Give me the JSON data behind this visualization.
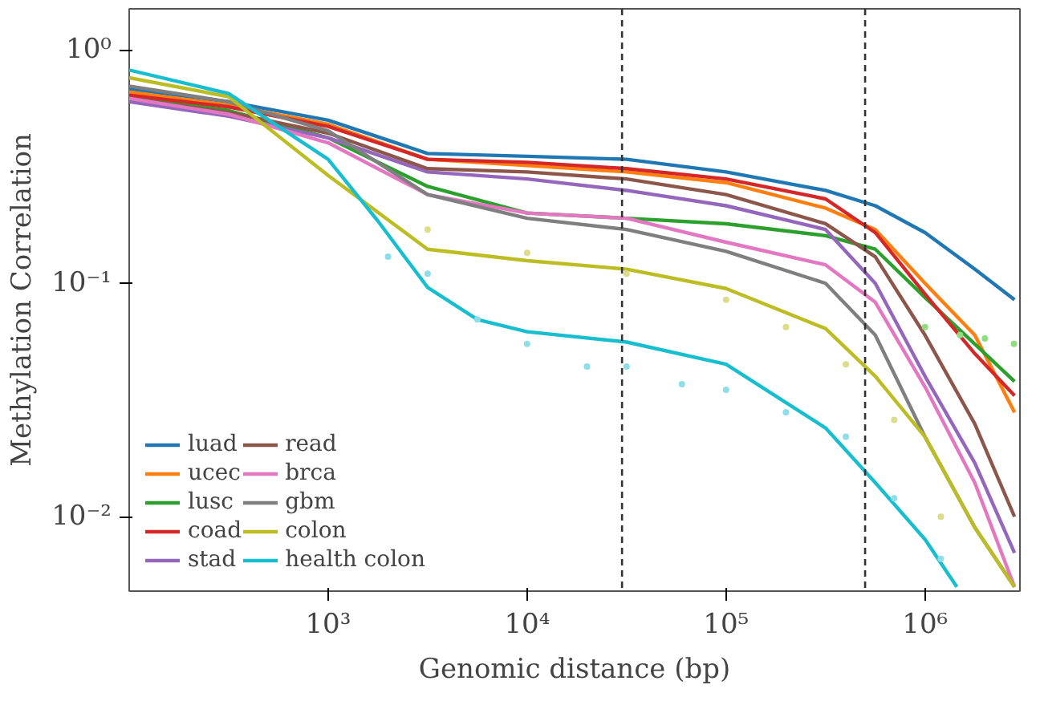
{
  "chart_data": {
    "type": "line",
    "xlabel": "Genomic distance (bp)",
    "ylabel": "Methylation Correlation",
    "log": "xy",
    "xlim": [
      100,
      3000000
    ],
    "ylim": [
      0.0048,
      1.5
    ],
    "xticks": [
      {
        "value": 1000,
        "label": "10³"
      },
      {
        "value": 10000,
        "label": "10⁴"
      },
      {
        "value": 100000,
        "label": "10⁵"
      },
      {
        "value": 1000000,
        "label": "10⁶"
      }
    ],
    "yticks": [
      {
        "value": 0.01,
        "label": "10⁻²"
      },
      {
        "value": 0.1,
        "label": "10⁻¹"
      },
      {
        "value": 1,
        "label": "10⁰"
      }
    ],
    "x": [
      100,
      316,
      1000,
      3162,
      10000,
      31623,
      100000,
      316228,
      562341,
      1000000,
      1778279,
      2818383
    ],
    "grid": false,
    "legend": "bottom left",
    "line_style": "solid",
    "ref_lines": [
      {
        "axis": "x",
        "value": 30000,
        "color": "#333333",
        "line_style": "dashed"
      },
      {
        "axis": "x",
        "value": 500000,
        "color": "#333333",
        "line_style": "dashed"
      }
    ],
    "series": [
      {
        "name": "luad",
        "color": "#1f77b4",
        "values": [
          0.68,
          0.6,
          0.5,
          0.36,
          0.35,
          0.34,
          0.3,
          0.25,
          0.215,
          0.165,
          0.115,
          0.085
        ]
      },
      {
        "name": "ucec",
        "color": "#ff7f0e",
        "values": [
          0.66,
          0.58,
          0.48,
          0.34,
          0.32,
          0.3,
          0.27,
          0.21,
          0.17,
          0.1,
          0.06,
          0.028
        ]
      },
      {
        "name": "lusc",
        "color": "#2ca02c",
        "values": [
          0.63,
          0.55,
          0.42,
          0.26,
          0.2,
          0.19,
          0.18,
          0.16,
          0.14,
          0.087,
          0.055,
          0.038
        ]
      },
      {
        "name": "coad",
        "color": "#d62728",
        "values": [
          0.64,
          0.57,
          0.47,
          0.34,
          0.33,
          0.31,
          0.28,
          0.23,
          0.165,
          0.09,
          0.05,
          0.033
        ]
      },
      {
        "name": "stad",
        "color": "#9467bd",
        "values": [
          0.6,
          0.52,
          0.42,
          0.3,
          0.28,
          0.25,
          0.215,
          0.17,
          0.1,
          0.04,
          0.017,
          0.007
        ]
      },
      {
        "name": "read",
        "color": "#8c564b",
        "values": [
          0.62,
          0.54,
          0.44,
          0.31,
          0.3,
          0.28,
          0.24,
          0.18,
          0.13,
          0.06,
          0.025,
          0.01
        ]
      },
      {
        "name": "brca",
        "color": "#e377c2",
        "values": [
          0.62,
          0.53,
          0.4,
          0.24,
          0.2,
          0.19,
          0.15,
          0.12,
          0.083,
          0.036,
          0.014,
          0.005
        ]
      },
      {
        "name": "gbm",
        "color": "#7f7f7f",
        "values": [
          0.7,
          0.6,
          0.45,
          0.24,
          0.19,
          0.17,
          0.137,
          0.1,
          0.06,
          0.022,
          0.009,
          0.005
        ]
      },
      {
        "name": "colon",
        "color": "#bcbd22",
        "values": [
          0.76,
          0.63,
          0.29,
          0.14,
          0.125,
          0.115,
          0.095,
          0.064,
          0.04,
          0.022,
          0.009,
          0.005
        ]
      },
      {
        "name": "health colon",
        "color": "#17becf",
        "x": [
          100,
          316,
          1000,
          1778,
          3162,
          5623,
          10000,
          31623,
          100000,
          316228,
          562341,
          1000000,
          1445440
        ],
        "values": [
          0.82,
          0.65,
          0.34,
          0.185,
          0.096,
          0.07,
          0.062,
          0.056,
          0.045,
          0.024,
          0.014,
          0.008,
          0.005
        ]
      },
      {
        "type": "scatter",
        "marker": "circle",
        "color": "#8fdde6",
        "x": [
          2000,
          3162,
          5623,
          10000,
          20000,
          31623,
          60000,
          100000,
          200000,
          400000,
          700000,
          1200000
        ],
        "values": [
          0.13,
          0.11,
          0.07,
          0.055,
          0.044,
          0.044,
          0.037,
          0.035,
          0.028,
          0.022,
          0.012,
          0.0066
        ]
      },
      {
        "type": "scatter",
        "marker": "circle",
        "color": "#dcdc8a",
        "x": [
          3162,
          10000,
          31623,
          100000,
          200000,
          400000,
          700000,
          1200000
        ],
        "values": [
          0.17,
          0.135,
          0.11,
          0.085,
          0.065,
          0.045,
          0.026,
          0.01
        ]
      },
      {
        "type": "scatter",
        "marker": "circle",
        "color": "#90dc80",
        "x": [
          1000000,
          1500000,
          2000000,
          2800000
        ],
        "values": [
          0.065,
          0.06,
          0.058,
          0.055
        ]
      }
    ]
  }
}
